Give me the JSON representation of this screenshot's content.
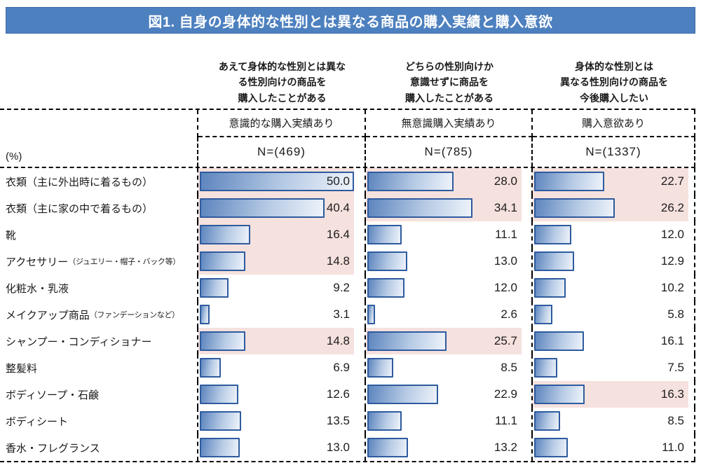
{
  "title": "図1. 自身の身体的な性別とは異なる商品の購入実績と購入意欲",
  "unit_label": "(%)",
  "colors": {
    "title_bg": "#4d80bf",
    "title_text": "#ffffff",
    "bar_border": "#2e5b9e",
    "bar_gradient_start": "#5d85be",
    "bar_gradient_mid": "#b7cbe5",
    "bar_gradient_end": "#eef3fa",
    "highlight_pink": "#f5e1de",
    "border_dash": "#000000"
  },
  "chart_data": {
    "type": "bar",
    "orientation": "horizontal",
    "xlim": [
      0,
      54
    ],
    "grid": false,
    "legend_position": "none",
    "categories": [
      {
        "label": "衣類（主に外出時に着るもの）",
        "note": ""
      },
      {
        "label": "衣類（主に家の中で着るもの）",
        "note": ""
      },
      {
        "label": "靴",
        "note": ""
      },
      {
        "label": "アクセサリー",
        "note": "（ジュエリー・帽子・バック等）"
      },
      {
        "label": "化粧水・乳液",
        "note": ""
      },
      {
        "label": "メイクアップ商品",
        "note": "（ファンデーションなど）"
      },
      {
        "label": "シャンプー・コンディショナー",
        "note": ""
      },
      {
        "label": "整髪料",
        "note": ""
      },
      {
        "label": "ボディソープ・石鹸",
        "note": ""
      },
      {
        "label": "ボディシート",
        "note": ""
      },
      {
        "label": "香水・フレグランス",
        "note": ""
      }
    ],
    "series": [
      {
        "description": "あえて身体的な性別とは異な\nる性別向けの商品を\n購入したことがある",
        "name": "意識的な購入実績あり",
        "n_label": "N=(469)",
        "values": [
          50.0,
          40.4,
          16.4,
          14.8,
          9.2,
          3.1,
          14.8,
          6.9,
          12.6,
          13.5,
          13.0
        ],
        "highlighted": [
          true,
          true,
          true,
          true,
          false,
          false,
          true,
          false,
          false,
          false,
          false
        ]
      },
      {
        "description": "どちらの性別向けか\n意識せずに商品を\n購入したことがある",
        "name": "無意識購入実績あり",
        "n_label": "N=(785)",
        "values": [
          28.0,
          34.1,
          11.1,
          13.0,
          12.0,
          2.6,
          25.7,
          8.5,
          22.9,
          11.1,
          13.2
        ],
        "highlighted": [
          true,
          true,
          false,
          false,
          false,
          false,
          true,
          false,
          false,
          false,
          false
        ]
      },
      {
        "description": "身体的な性別とは\n異なる性別向けの商品を\n今後購入したい",
        "name": "購入意欲あり",
        "n_label": "N=(1337)",
        "values": [
          22.7,
          26.2,
          12.0,
          12.9,
          10.2,
          5.8,
          16.1,
          7.5,
          16.3,
          8.5,
          11.0
        ],
        "highlighted": [
          true,
          true,
          false,
          false,
          false,
          false,
          false,
          false,
          true,
          false,
          false
        ]
      }
    ]
  }
}
